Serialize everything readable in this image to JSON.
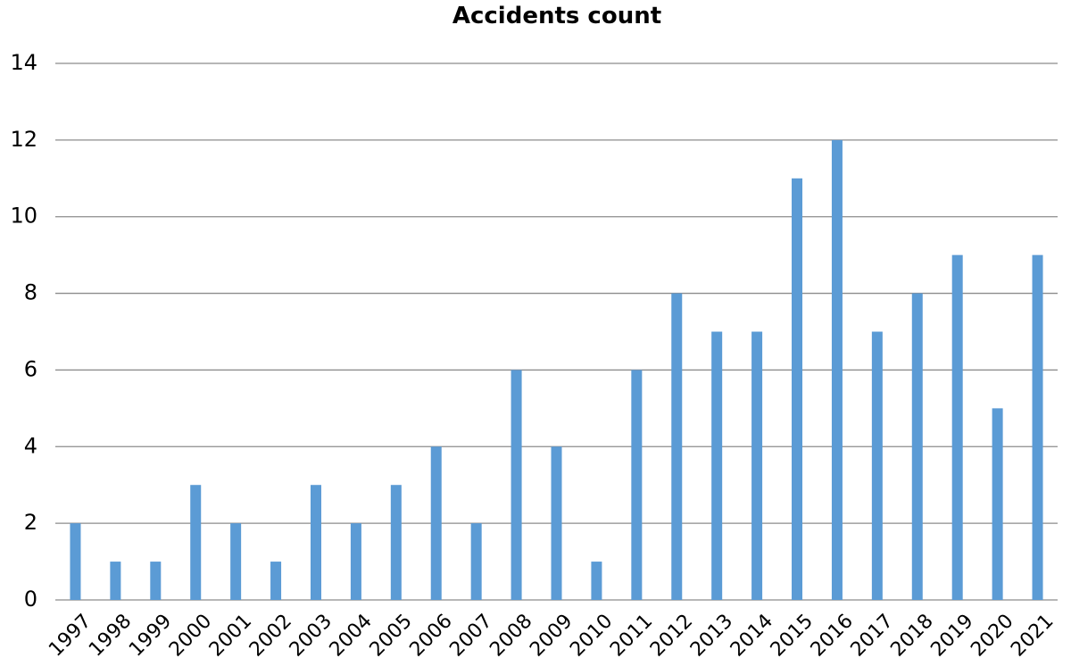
{
  "chart_data": {
    "type": "bar",
    "title": "Accidents count",
    "categories": [
      "1997",
      "1998",
      "1999",
      "2000",
      "2001",
      "2002",
      "2003",
      "2004",
      "2005",
      "2006",
      "2007",
      "2008",
      "2009",
      "2010",
      "2011",
      "2012",
      "2013",
      "2014",
      "2015",
      "2016",
      "2017",
      "2018",
      "2019",
      "2020",
      "2021"
    ],
    "values": [
      2,
      1,
      1,
      3,
      2,
      1,
      3,
      2,
      3,
      4,
      2,
      6,
      4,
      1,
      6,
      8,
      7,
      7,
      11,
      12,
      7,
      8,
      9,
      5,
      9
    ],
    "color": "#5b9bd5",
    "ylim": [
      0,
      14
    ],
    "yticks": [
      0,
      2,
      4,
      6,
      8,
      10,
      12,
      14
    ],
    "grid": true
  }
}
